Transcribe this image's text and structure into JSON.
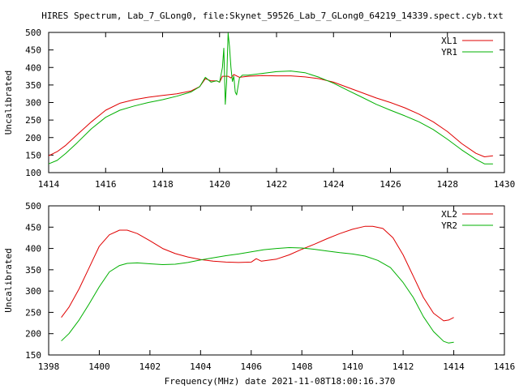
{
  "title": "HIRES Spectrum, Lab_7_GLong0, file:Skynet_59526_Lab_7_GLong0_64219_14339.spect.cyb.txt",
  "colors": {
    "red": "#e00000",
    "green": "#00b000",
    "frame": "#000000",
    "background": "#ffffff"
  },
  "chart_data": [
    {
      "type": "line",
      "ylabel": "Uncalibrated",
      "xlabel": "",
      "xlim": [
        1414,
        1430
      ],
      "ylim": [
        100,
        500
      ],
      "xticks": [
        1414,
        1416,
        1418,
        1420,
        1422,
        1424,
        1426,
        1428,
        1430
      ],
      "yticks": [
        100,
        150,
        200,
        250,
        300,
        350,
        400,
        450,
        500
      ],
      "legend_position": "top-right",
      "series": [
        {
          "name": "XL1",
          "color": "#e00000",
          "x": [
            1414.0,
            1414.3,
            1414.6,
            1415.0,
            1415.5,
            1416.0,
            1416.5,
            1417.0,
            1417.5,
            1418.0,
            1418.5,
            1419.0,
            1419.3,
            1419.5,
            1419.7,
            1419.9,
            1420.0,
            1420.1,
            1420.3,
            1420.4,
            1420.5,
            1420.7,
            1421.0,
            1421.5,
            1422.0,
            1422.5,
            1423.0,
            1423.5,
            1424.0,
            1424.5,
            1425.0,
            1425.5,
            1426.0,
            1426.5,
            1427.0,
            1427.5,
            1428.0,
            1428.5,
            1429.0,
            1429.3,
            1429.6
          ],
          "y": [
            148,
            160,
            178,
            208,
            245,
            278,
            298,
            308,
            315,
            320,
            325,
            333,
            345,
            368,
            362,
            362,
            358,
            375,
            375,
            370,
            380,
            372,
            375,
            377,
            376,
            376,
            373,
            368,
            358,
            343,
            328,
            313,
            300,
            285,
            267,
            245,
            217,
            183,
            155,
            145,
            148
          ]
        },
        {
          "name": "YR1",
          "color": "#00b000",
          "x": [
            1414.0,
            1414.3,
            1414.6,
            1415.0,
            1415.5,
            1416.0,
            1416.5,
            1417.0,
            1417.5,
            1418.0,
            1418.5,
            1419.0,
            1419.3,
            1419.5,
            1419.7,
            1419.9,
            1420.0,
            1420.1,
            1420.15,
            1420.2,
            1420.25,
            1420.3,
            1420.35,
            1420.4,
            1420.45,
            1420.5,
            1420.55,
            1420.6,
            1420.7,
            1420.8,
            1421.0,
            1421.5,
            1422.0,
            1422.5,
            1423.0,
            1423.5,
            1424.0,
            1424.5,
            1425.0,
            1425.5,
            1426.0,
            1426.5,
            1427.0,
            1427.5,
            1428.0,
            1428.5,
            1429.0,
            1429.3,
            1429.6
          ],
          "y": [
            125,
            135,
            155,
            185,
            225,
            258,
            278,
            290,
            300,
            308,
            318,
            330,
            345,
            372,
            358,
            362,
            358,
            400,
            455,
            295,
            360,
            498,
            460,
            400,
            360,
            375,
            330,
            322,
            370,
            378,
            378,
            383,
            388,
            390,
            385,
            372,
            355,
            335,
            315,
            295,
            278,
            262,
            245,
            223,
            195,
            165,
            138,
            125,
            125
          ]
        }
      ]
    },
    {
      "type": "line",
      "ylabel": "Uncalibrated",
      "xlabel": "Frequency(MHz) date 2021-11-08T18:00:16.370",
      "xlim": [
        1398,
        1416
      ],
      "ylim": [
        150,
        500
      ],
      "xticks": [
        1398,
        1400,
        1402,
        1404,
        1406,
        1408,
        1410,
        1412,
        1414,
        1416
      ],
      "yticks": [
        150,
        200,
        250,
        300,
        350,
        400,
        450,
        500
      ],
      "legend_position": "top-right",
      "series": [
        {
          "name": "XL2",
          "color": "#e00000",
          "x": [
            1398.5,
            1398.8,
            1399.2,
            1399.6,
            1400.0,
            1400.4,
            1400.8,
            1401.1,
            1401.5,
            1402.0,
            1402.5,
            1403.0,
            1403.5,
            1404.0,
            1404.5,
            1405.0,
            1405.5,
            1406.0,
            1406.2,
            1406.4,
            1407.0,
            1407.5,
            1408.0,
            1408.5,
            1409.0,
            1409.5,
            1410.0,
            1410.5,
            1410.8,
            1411.2,
            1411.6,
            1412.0,
            1412.4,
            1412.8,
            1413.2,
            1413.6,
            1413.8,
            1414.0
          ],
          "y": [
            238,
            262,
            305,
            355,
            405,
            432,
            443,
            443,
            435,
            418,
            400,
            388,
            380,
            374,
            370,
            368,
            367,
            368,
            376,
            370,
            375,
            385,
            398,
            410,
            423,
            435,
            445,
            452,
            452,
            447,
            425,
            385,
            335,
            285,
            248,
            230,
            232,
            238
          ]
        },
        {
          "name": "YR2",
          "color": "#00b000",
          "x": [
            1398.5,
            1398.8,
            1399.2,
            1399.6,
            1400.0,
            1400.4,
            1400.8,
            1401.1,
            1401.5,
            1402.0,
            1402.5,
            1403.0,
            1403.5,
            1404.0,
            1404.5,
            1405.0,
            1405.5,
            1406.0,
            1406.5,
            1407.0,
            1407.5,
            1408.0,
            1408.5,
            1409.0,
            1409.5,
            1410.0,
            1410.5,
            1411.0,
            1411.5,
            1412.0,
            1412.4,
            1412.8,
            1413.2,
            1413.6,
            1413.8,
            1414.0
          ],
          "y": [
            183,
            200,
            232,
            270,
            310,
            345,
            360,
            365,
            366,
            364,
            362,
            363,
            367,
            373,
            378,
            383,
            387,
            392,
            397,
            400,
            402,
            401,
            398,
            394,
            390,
            387,
            382,
            372,
            355,
            320,
            285,
            240,
            205,
            182,
            178,
            180
          ]
        }
      ]
    }
  ]
}
